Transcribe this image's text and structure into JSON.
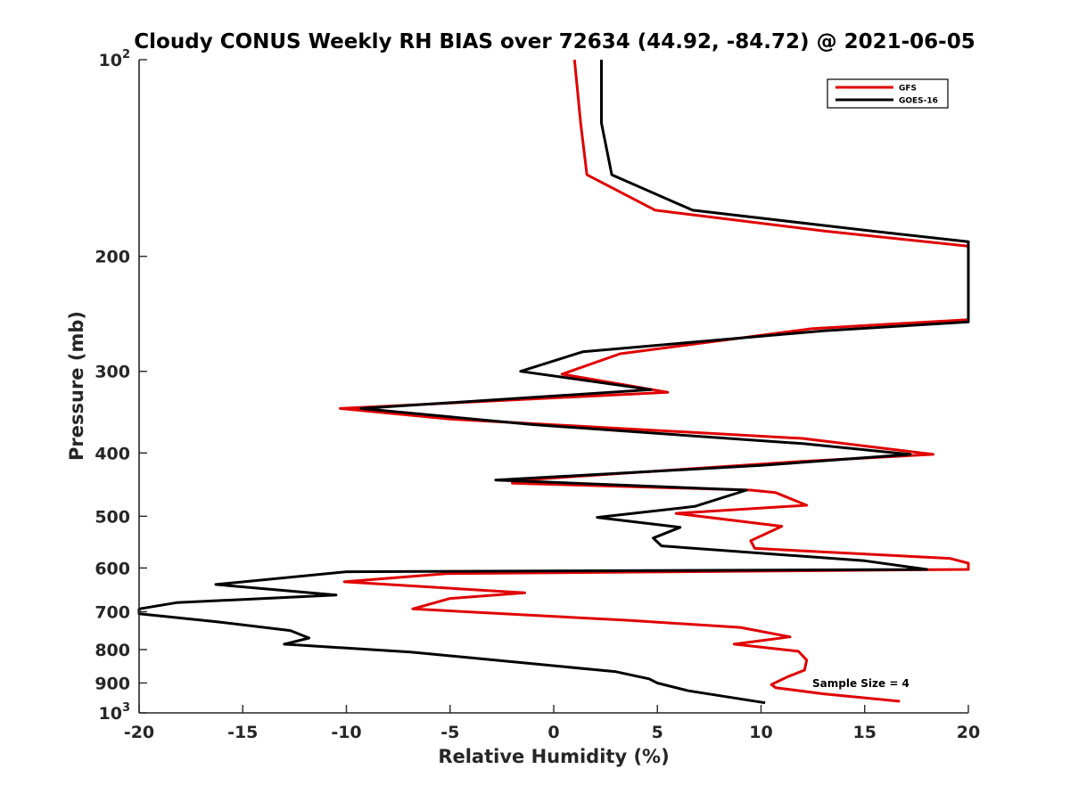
{
  "chart_data": {
    "type": "line",
    "title": "Cloudy CONUS Weekly RH BIAS over 72634 (44.92, -84.72) @ 2021-06-05",
    "xlabel": "Relative Humidity (%)",
    "ylabel": "Pressure (mb)",
    "xlim": [
      -20,
      20
    ],
    "ylim": [
      100,
      1000
    ],
    "y_scale": "log",
    "y_reversed": true,
    "grid": false,
    "x_ticks": [
      {
        "value": -20,
        "label": "-20"
      },
      {
        "value": -15,
        "label": "-15"
      },
      {
        "value": -10,
        "label": "-10"
      },
      {
        "value": -5,
        "label": "-5"
      },
      {
        "value": 0,
        "label": "0"
      },
      {
        "value": 5,
        "label": "5"
      },
      {
        "value": 10,
        "label": "10"
      },
      {
        "value": 15,
        "label": "15"
      },
      {
        "value": 20,
        "label": "20"
      }
    ],
    "y_ticks": [
      {
        "value": 100,
        "base": "10",
        "exp": "2"
      },
      {
        "value": 200,
        "base": "200",
        "exp": ""
      },
      {
        "value": 300,
        "base": "300",
        "exp": ""
      },
      {
        "value": 400,
        "base": "400",
        "exp": ""
      },
      {
        "value": 500,
        "base": "500",
        "exp": ""
      },
      {
        "value": 600,
        "base": "600",
        "exp": ""
      },
      {
        "value": 700,
        "base": "700",
        "exp": ""
      },
      {
        "value": 800,
        "base": "800",
        "exp": ""
      },
      {
        "value": 900,
        "base": "900",
        "exp": ""
      },
      {
        "value": 1000,
        "base": "10",
        "exp": "3"
      }
    ],
    "legend_position": "top-right",
    "annotation": "Sample Size = 4",
    "series": [
      {
        "name": "GFS",
        "color": "#e00000",
        "points": [
          [
            1.0,
            100
          ],
          [
            1.3,
            125
          ],
          [
            1.6,
            150
          ],
          [
            4.9,
            170
          ],
          [
            13.1,
            183
          ],
          [
            20.0,
            193
          ],
          [
            20.0,
            250
          ],
          [
            12.5,
            258
          ],
          [
            3.2,
            282
          ],
          [
            0.4,
            303
          ],
          [
            5.5,
            323
          ],
          [
            -10.3,
            342
          ],
          [
            -5.0,
            355
          ],
          [
            2.0,
            365
          ],
          [
            12.0,
            380
          ],
          [
            18.3,
            402
          ],
          [
            12.0,
            412
          ],
          [
            -1.5,
            440
          ],
          [
            -2.0,
            445
          ],
          [
            9.5,
            456
          ],
          [
            10.7,
            460
          ],
          [
            12.2,
            481
          ],
          [
            5.9,
            495
          ],
          [
            11.0,
            518
          ],
          [
            9.5,
            545
          ],
          [
            9.7,
            560
          ],
          [
            19.1,
            580
          ],
          [
            20.0,
            590
          ],
          [
            20.0,
            603
          ],
          [
            -5.2,
            612
          ],
          [
            -10.1,
            630
          ],
          [
            -1.4,
            655
          ],
          [
            -5.0,
            668
          ],
          [
            -6.8,
            693
          ],
          [
            3.7,
            722
          ],
          [
            9.0,
            740
          ],
          [
            11.4,
            765
          ],
          [
            8.7,
            785
          ],
          [
            11.8,
            805
          ],
          [
            12.2,
            830
          ],
          [
            12.1,
            860
          ],
          [
            11.3,
            880
          ],
          [
            10.5,
            905
          ],
          [
            10.7,
            915
          ],
          [
            13.0,
            935
          ],
          [
            16.7,
            960
          ]
        ]
      },
      {
        "name": "GOES-16",
        "color": "#000000",
        "points": [
          [
            2.3,
            100
          ],
          [
            2.3,
            125
          ],
          [
            2.8,
            150
          ],
          [
            6.7,
            170
          ],
          [
            15.4,
            183
          ],
          [
            20.0,
            190
          ],
          [
            20.0,
            252
          ],
          [
            13.0,
            260
          ],
          [
            1.4,
            280
          ],
          [
            -1.6,
            300
          ],
          [
            4.7,
            320
          ],
          [
            -9.3,
            342
          ],
          [
            -1.0,
            362
          ],
          [
            12.0,
            387
          ],
          [
            17.2,
            402
          ],
          [
            10.0,
            418
          ],
          [
            -2.8,
            440
          ],
          [
            9.3,
            456
          ],
          [
            6.8,
            483
          ],
          [
            2.1,
            502
          ],
          [
            6.1,
            520
          ],
          [
            4.8,
            540
          ],
          [
            5.2,
            555
          ],
          [
            15.0,
            585
          ],
          [
            18.0,
            603
          ],
          [
            -10.0,
            608
          ],
          [
            -16.3,
            636
          ],
          [
            -10.5,
            660
          ],
          [
            -18.2,
            678
          ],
          [
            -20.0,
            693
          ],
          [
            -20.0,
            705
          ],
          [
            -16.3,
            725
          ],
          [
            -12.7,
            748
          ],
          [
            -11.8,
            768
          ],
          [
            -13.0,
            785
          ],
          [
            -6.9,
            807
          ],
          [
            -2.5,
            832
          ],
          [
            3.0,
            865
          ],
          [
            4.6,
            887
          ],
          [
            5.0,
            900
          ],
          [
            6.5,
            925
          ],
          [
            10.2,
            965
          ]
        ]
      }
    ]
  }
}
